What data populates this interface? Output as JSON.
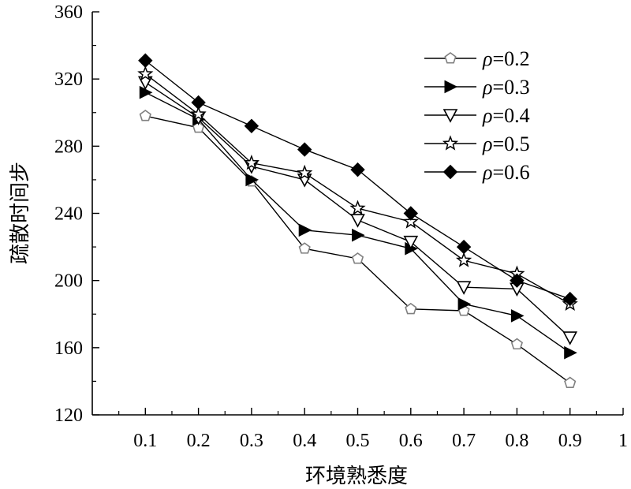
{
  "chart_data": {
    "type": "line",
    "xlabel": "环境熟悉度",
    "ylabel": "疏散时间步",
    "xlim": [
      0,
      1
    ],
    "ylim": [
      120,
      360
    ],
    "x_ticks": [
      "0.1",
      "0.2",
      "0.3",
      "0.4",
      "0.5",
      "0.6",
      "0.7",
      "0.8",
      "0.9",
      "1"
    ],
    "x_tick_values": [
      0.1,
      0.2,
      0.3,
      0.4,
      0.5,
      0.6,
      0.7,
      0.8,
      0.9,
      1.0
    ],
    "y_ticks": [
      "120",
      "160",
      "200",
      "240",
      "280",
      "320",
      "360"
    ],
    "y_tick_values": [
      120,
      160,
      200,
      240,
      280,
      320,
      360
    ],
    "x": [
      0.1,
      0.2,
      0.3,
      0.4,
      0.5,
      0.6,
      0.7,
      0.8,
      0.9
    ],
    "series": [
      {
        "name": "ρ=0.2",
        "rho": "ρ",
        "suffix": "=0.2",
        "marker": "pentagon-open",
        "color": "#808080",
        "values": [
          298,
          291,
          259,
          219,
          213,
          183,
          182,
          162,
          139
        ]
      },
      {
        "name": "ρ=0.3",
        "rho": "ρ",
        "suffix": "=0.3",
        "marker": "triangle-right-filled",
        "color": "#000000",
        "values": [
          312,
          296,
          260,
          230,
          227,
          219,
          186,
          179,
          157
        ]
      },
      {
        "name": "ρ=0.4",
        "rho": "ρ",
        "suffix": "=0.4",
        "marker": "triangle-down-open",
        "color": "#000000",
        "values": [
          318,
          297,
          268,
          260,
          236,
          223,
          196,
          195,
          166
        ]
      },
      {
        "name": "ρ=0.5",
        "rho": "ρ",
        "suffix": "=0.5",
        "marker": "star-open",
        "color": "#000000",
        "values": [
          323,
          299,
          270,
          264,
          243,
          235,
          212,
          204,
          186
        ]
      },
      {
        "name": "ρ=0.6",
        "rho": "ρ",
        "suffix": "=0.6",
        "marker": "diamond-filled",
        "color": "#000000",
        "values": [
          331,
          306,
          292,
          278,
          266,
          240,
          220,
          200,
          189
        ]
      }
    ],
    "legend_position": "top-right",
    "grid": false
  }
}
